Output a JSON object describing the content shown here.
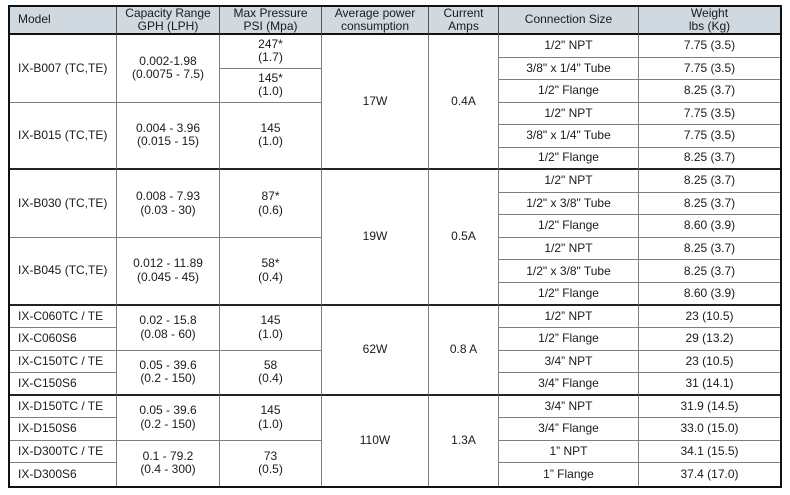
{
  "colors": {
    "header_bg": "#d0d9e0",
    "grid_line": "#7e7e7e",
    "outer_border": "#111111",
    "thick_line": "#222222",
    "text": "#1a1a1a",
    "page_bg": "#ffffff"
  },
  "table": {
    "headers": [
      {
        "id": "model",
        "lines": [
          "Model"
        ]
      },
      {
        "id": "capacity",
        "lines": [
          "Capacity Range",
          "GPH (LPH)"
        ]
      },
      {
        "id": "pressure",
        "lines": [
          "Max Pressure",
          "PSI (Mpa)"
        ]
      },
      {
        "id": "power",
        "lines": [
          "Average power",
          "consumption"
        ]
      },
      {
        "id": "current",
        "lines": [
          "Current",
          "Amps"
        ]
      },
      {
        "id": "connection",
        "lines": [
          "Connection Size"
        ]
      },
      {
        "id": "weight",
        "lines": [
          "Weight",
          "lbs (Kg)"
        ]
      }
    ],
    "columns": {
      "model": [
        {
          "lines": [
            "IX-B007 (TC,TE)"
          ],
          "span": 6
        },
        {
          "lines": [
            "IX-B015 (TC,TE)"
          ],
          "span": 6
        },
        {
          "lines": [
            "IX-B030 (TC,TE)"
          ],
          "span": 6
        },
        {
          "lines": [
            "IX-B045 (TC,TE)"
          ],
          "span": 6
        },
        {
          "lines": [
            "IX-C060TC / TE"
          ],
          "span": 2
        },
        {
          "lines": [
            "IX-C060S6"
          ],
          "span": 2
        },
        {
          "lines": [
            "IX-C150TC / TE"
          ],
          "span": 2
        },
        {
          "lines": [
            "IX-C150S6"
          ],
          "span": 2
        },
        {
          "lines": [
            "IX-D150TC / TE"
          ],
          "span": 2
        },
        {
          "lines": [
            "IX-D150S6"
          ],
          "span": 2
        },
        {
          "lines": [
            "IX-D300TC / TE"
          ],
          "span": 2
        },
        {
          "lines": [
            "IX-D300S6"
          ],
          "span": 2
        }
      ],
      "capacity": [
        {
          "lines": [
            "0.002-1.98",
            "(0.0075 - 7.5)"
          ],
          "span": 6
        },
        {
          "lines": [
            "0.004 - 3.96",
            "(0.015 - 15)"
          ],
          "span": 6
        },
        {
          "lines": [
            "0.008 - 7.93",
            "(0.03 - 30)"
          ],
          "span": 6
        },
        {
          "lines": [
            "0.012 - 11.89",
            "(0.045 - 45)"
          ],
          "span": 6
        },
        {
          "lines": [
            "0.02 - 15.8",
            "(0.08 - 60)"
          ],
          "span": 4
        },
        {
          "lines": [
            "0.05 - 39.6",
            "(0.2 - 150)"
          ],
          "span": 4
        },
        {
          "lines": [
            "0.05 - 39.6",
            "(0.2 - 150)"
          ],
          "span": 4
        },
        {
          "lines": [
            "0.1 - 79.2",
            "(0.4 - 300)"
          ],
          "span": 4
        }
      ],
      "pressure": [
        {
          "lines": [
            "247*",
            "(1.7)"
          ],
          "span": 3
        },
        {
          "lines": [
            "145*",
            "(1.0)"
          ],
          "span": 3
        },
        {
          "lines": [
            "145",
            "(1.0)"
          ],
          "span": 6
        },
        {
          "lines": [
            "87*",
            "(0.6)"
          ],
          "span": 6
        },
        {
          "lines": [
            "58*",
            "(0.4)"
          ],
          "span": 6
        },
        {
          "lines": [
            "145",
            "(1.0)"
          ],
          "span": 4
        },
        {
          "lines": [
            "58",
            "(0.4)"
          ],
          "span": 4
        },
        {
          "lines": [
            "145",
            "(1.0)"
          ],
          "span": 4
        },
        {
          "lines": [
            "73",
            "(0.5)"
          ],
          "span": 4
        }
      ],
      "power": [
        {
          "lines": [
            "17W"
          ],
          "span": 12
        },
        {
          "lines": [
            "19W"
          ],
          "span": 12
        },
        {
          "lines": [
            "62W"
          ],
          "span": 8
        },
        {
          "lines": [
            "110W"
          ],
          "span": 8
        }
      ],
      "current": [
        {
          "lines": [
            "0.4A"
          ],
          "span": 12
        },
        {
          "lines": [
            "0.5A"
          ],
          "span": 12
        },
        {
          "lines": [
            "0.8 A"
          ],
          "span": 8
        },
        {
          "lines": [
            "1.3A"
          ],
          "span": 8
        }
      ],
      "connection": [
        {
          "lines": [
            "1/2\" NPT"
          ],
          "span": 2
        },
        {
          "lines": [
            "3/8\" x 1/4\" Tube"
          ],
          "span": 2
        },
        {
          "lines": [
            "1/2\" Flange"
          ],
          "span": 2
        },
        {
          "lines": [
            "1/2\" NPT"
          ],
          "span": 2
        },
        {
          "lines": [
            "3/8\" x 1/4\" Tube"
          ],
          "span": 2
        },
        {
          "lines": [
            "1/2\" Flange"
          ],
          "span": 2
        },
        {
          "lines": [
            "1/2\" NPT"
          ],
          "span": 2
        },
        {
          "lines": [
            "1/2\" x 3/8\" Tube"
          ],
          "span": 2
        },
        {
          "lines": [
            "1/2\" Flange"
          ],
          "span": 2
        },
        {
          "lines": [
            "1/2\" NPT"
          ],
          "span": 2
        },
        {
          "lines": [
            "1/2\" x 3/8\" Tube"
          ],
          "span": 2
        },
        {
          "lines": [
            "1/2\" Flange"
          ],
          "span": 2
        },
        {
          "lines": [
            "1/2” NPT"
          ],
          "span": 2
        },
        {
          "lines": [
            "1/2” Flange"
          ],
          "span": 2
        },
        {
          "lines": [
            "3/4” NPT"
          ],
          "span": 2
        },
        {
          "lines": [
            "3/4” Flange"
          ],
          "span": 2
        },
        {
          "lines": [
            "3/4” NPT"
          ],
          "span": 2
        },
        {
          "lines": [
            "3/4” Flange"
          ],
          "span": 2
        },
        {
          "lines": [
            "1” NPT"
          ],
          "span": 2
        },
        {
          "lines": [
            "1” Flange"
          ],
          "span": 2
        }
      ],
      "weight": [
        {
          "lines": [
            "7.75 (3.5)"
          ],
          "span": 2
        },
        {
          "lines": [
            "7.75 (3.5)"
          ],
          "span": 2
        },
        {
          "lines": [
            "8.25 (3.7)"
          ],
          "span": 2
        },
        {
          "lines": [
            "7.75 (3.5)"
          ],
          "span": 2
        },
        {
          "lines": [
            "7.75 (3.5)"
          ],
          "span": 2
        },
        {
          "lines": [
            "8.25 (3.7)"
          ],
          "span": 2
        },
        {
          "lines": [
            "8.25 (3.7)"
          ],
          "span": 2
        },
        {
          "lines": [
            "8.25 (3.7)"
          ],
          "span": 2
        },
        {
          "lines": [
            "8.60 (3.9)"
          ],
          "span": 2
        },
        {
          "lines": [
            "8.25 (3.7)"
          ],
          "span": 2
        },
        {
          "lines": [
            "8.25 (3.7)"
          ],
          "span": 2
        },
        {
          "lines": [
            "8.60 (3.9)"
          ],
          "span": 2
        },
        {
          "lines": [
            "23 (10.5)"
          ],
          "span": 2
        },
        {
          "lines": [
            "29 (13.2)"
          ],
          "span": 2
        },
        {
          "lines": [
            "23 (10.5)"
          ],
          "span": 2
        },
        {
          "lines": [
            "31 (14.1)"
          ],
          "span": 2
        },
        {
          "lines": [
            "31.9 (14.5)"
          ],
          "span": 2
        },
        {
          "lines": [
            "33.0 (15.0)"
          ],
          "span": 2
        },
        {
          "lines": [
            "34.1 (15.5)"
          ],
          "span": 2
        },
        {
          "lines": [
            "37.4 (17.0)"
          ],
          "span": 2
        }
      ]
    },
    "thick_boundaries_after_half_rows": [
      12,
      24,
      32
    ],
    "total_half_rows": 40
  }
}
